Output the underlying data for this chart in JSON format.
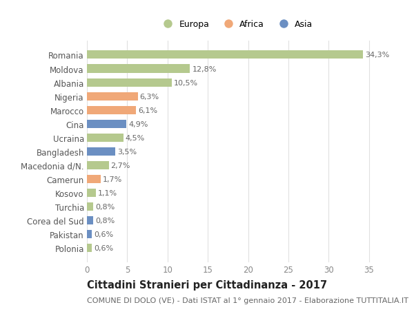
{
  "categories": [
    "Romania",
    "Moldova",
    "Albania",
    "Nigeria",
    "Marocco",
    "Cina",
    "Ucraina",
    "Bangladesh",
    "Macedonia d/N.",
    "Camerun",
    "Kosovo",
    "Turchia",
    "Corea del Sud",
    "Pakistan",
    "Polonia"
  ],
  "values": [
    34.3,
    12.8,
    10.5,
    6.3,
    6.1,
    4.9,
    4.5,
    3.5,
    2.7,
    1.7,
    1.1,
    0.8,
    0.8,
    0.6,
    0.6
  ],
  "labels": [
    "34,3%",
    "12,8%",
    "10,5%",
    "6,3%",
    "6,1%",
    "4,9%",
    "4,5%",
    "3,5%",
    "2,7%",
    "1,7%",
    "1,1%",
    "0,8%",
    "0,8%",
    "0,6%",
    "0,6%"
  ],
  "colors": [
    "#b5c98e",
    "#b5c98e",
    "#b5c98e",
    "#f0a878",
    "#f0a878",
    "#6b8fc2",
    "#b5c98e",
    "#6b8fc2",
    "#b5c98e",
    "#f0a878",
    "#b5c98e",
    "#b5c98e",
    "#6b8fc2",
    "#6b8fc2",
    "#b5c98e"
  ],
  "legend_labels": [
    "Europa",
    "Africa",
    "Asia"
  ],
  "legend_colors": [
    "#b5c98e",
    "#f0a878",
    "#6b8fc2"
  ],
  "title": "Cittadini Stranieri per Cittadinanza - 2017",
  "subtitle": "COMUNE DI DOLO (VE) - Dati ISTAT al 1° gennaio 2017 - Elaborazione TUTTITALIA.IT",
  "xlim": [
    0,
    37
  ],
  "xticks": [
    0,
    5,
    10,
    15,
    20,
    25,
    30,
    35
  ],
  "background_color": "#ffffff",
  "grid_color": "#e0e0e0",
  "bar_height": 0.6,
  "title_fontsize": 10.5,
  "subtitle_fontsize": 8,
  "tick_fontsize": 8.5,
  "label_fontsize": 8
}
